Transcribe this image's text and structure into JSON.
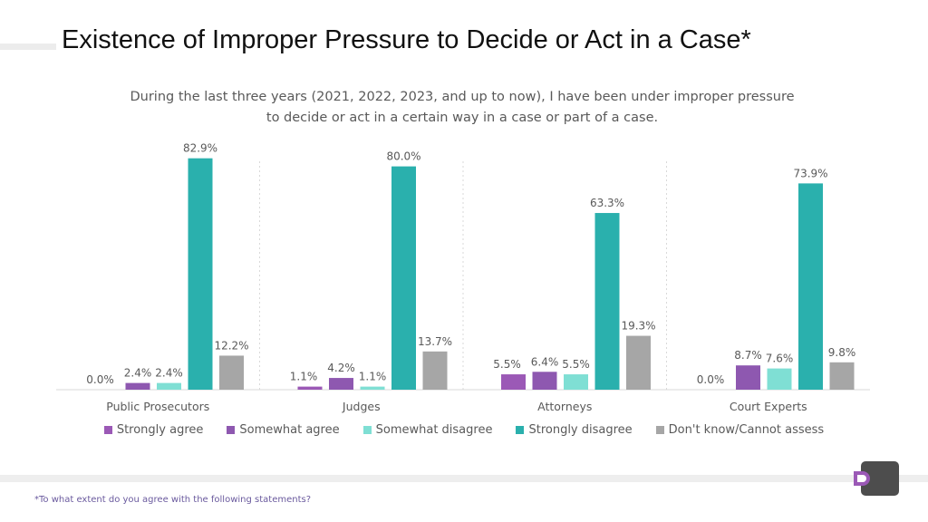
{
  "title": "Existence of Improper Pressure to Decide or Act in a Case*",
  "subtitle": {
    "line1": "During the last three years (2021, 2022, 2023, and up to now), I have been under improper pressure",
    "line2": "to decide or act in a certain way in a case or part of a case."
  },
  "footnote": "*To what extent do you agree with the following statements?",
  "colors": {
    "strongly_agree": "#9b59b6",
    "somewhat_agree": "#8e58b0",
    "somewhat_disagree": "#7fdfd4",
    "strongly_disagree": "#2ab0ad",
    "dont_know": "#a6a6a6"
  },
  "chart_data": {
    "type": "bar",
    "title": "During the last three years (2021, 2022, 2023, and up to now), I have been under improper pressure to decide or act in a certain way in a case or part of a case.",
    "categories": [
      "Public Prosecutors",
      "Judges",
      "Attorneys",
      "Court Experts"
    ],
    "series": [
      {
        "name": "Strongly agree",
        "color": "#9b59b6",
        "values": [
          0.0,
          1.1,
          5.5,
          0.0
        ],
        "labels": [
          "0.0%",
          "1.1%",
          "5.5%",
          "0.0%"
        ]
      },
      {
        "name": "Somewhat agree",
        "color": "#8e58b0",
        "values": [
          2.4,
          4.2,
          6.4,
          8.7
        ],
        "labels": [
          "2.4%",
          "4.2%",
          "6.4%",
          "8.7%"
        ]
      },
      {
        "name": "Somewhat disagree",
        "color": "#7fdfd4",
        "values": [
          2.4,
          1.1,
          5.5,
          7.6
        ],
        "labels": [
          "2.4%",
          "1.1%",
          "5.5%",
          "7.6%"
        ]
      },
      {
        "name": "Strongly disagree",
        "color": "#2ab0ad",
        "values": [
          82.9,
          80.0,
          63.3,
          73.9
        ],
        "labels": [
          "82.9%",
          "80.0%",
          "63.3%",
          "73.9%"
        ]
      },
      {
        "name": "Don't know/Cannot assess",
        "color": "#a6a6a6",
        "values": [
          12.2,
          13.7,
          19.3,
          9.8
        ],
        "labels": [
          "12.2%",
          "13.7%",
          "19.3%",
          "9.8%"
        ]
      }
    ],
    "unit": "%",
    "ylim": [
      0,
      100
    ],
    "xlabel": "",
    "ylabel": "",
    "grid": false,
    "legend": "bottom"
  }
}
